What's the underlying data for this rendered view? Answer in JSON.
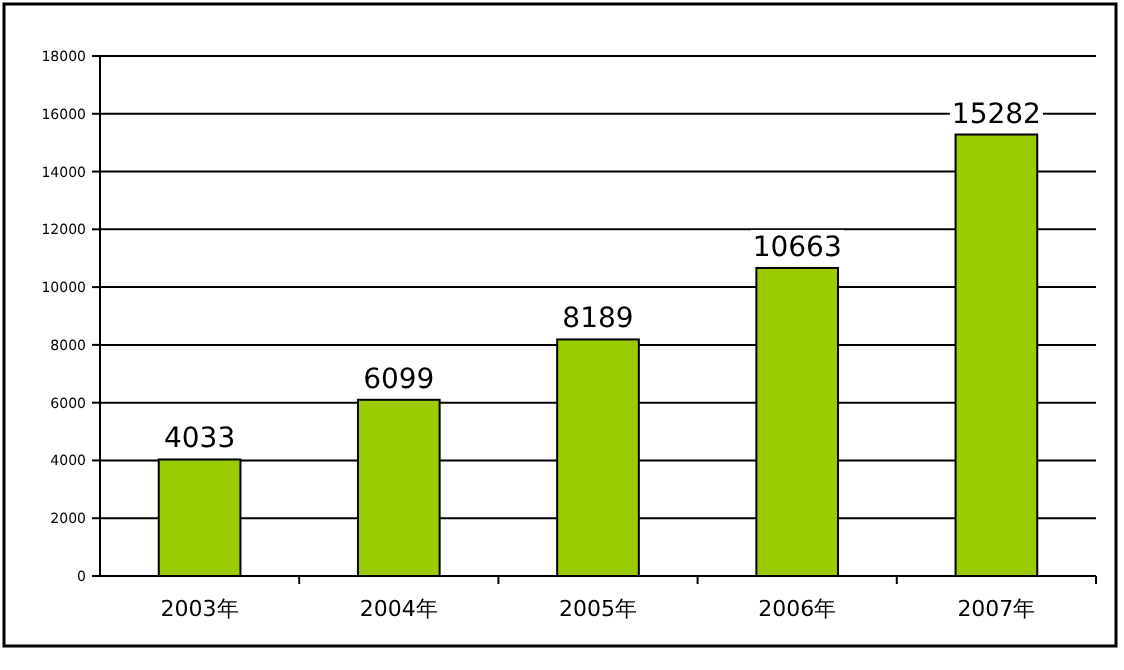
{
  "chart_data": {
    "type": "bar",
    "categories": [
      "2003年",
      "2004年",
      "2005年",
      "2006年",
      "2007年"
    ],
    "values": [
      4033,
      6099,
      8189,
      10663,
      15282
    ],
    "color": "#99cc00",
    "ylim": [
      0,
      18000
    ],
    "yticks": [
      0,
      2000,
      4000,
      6000,
      8000,
      10000,
      12000,
      14000,
      16000,
      18000
    ],
    "grid": "y",
    "data_labels": true
  }
}
